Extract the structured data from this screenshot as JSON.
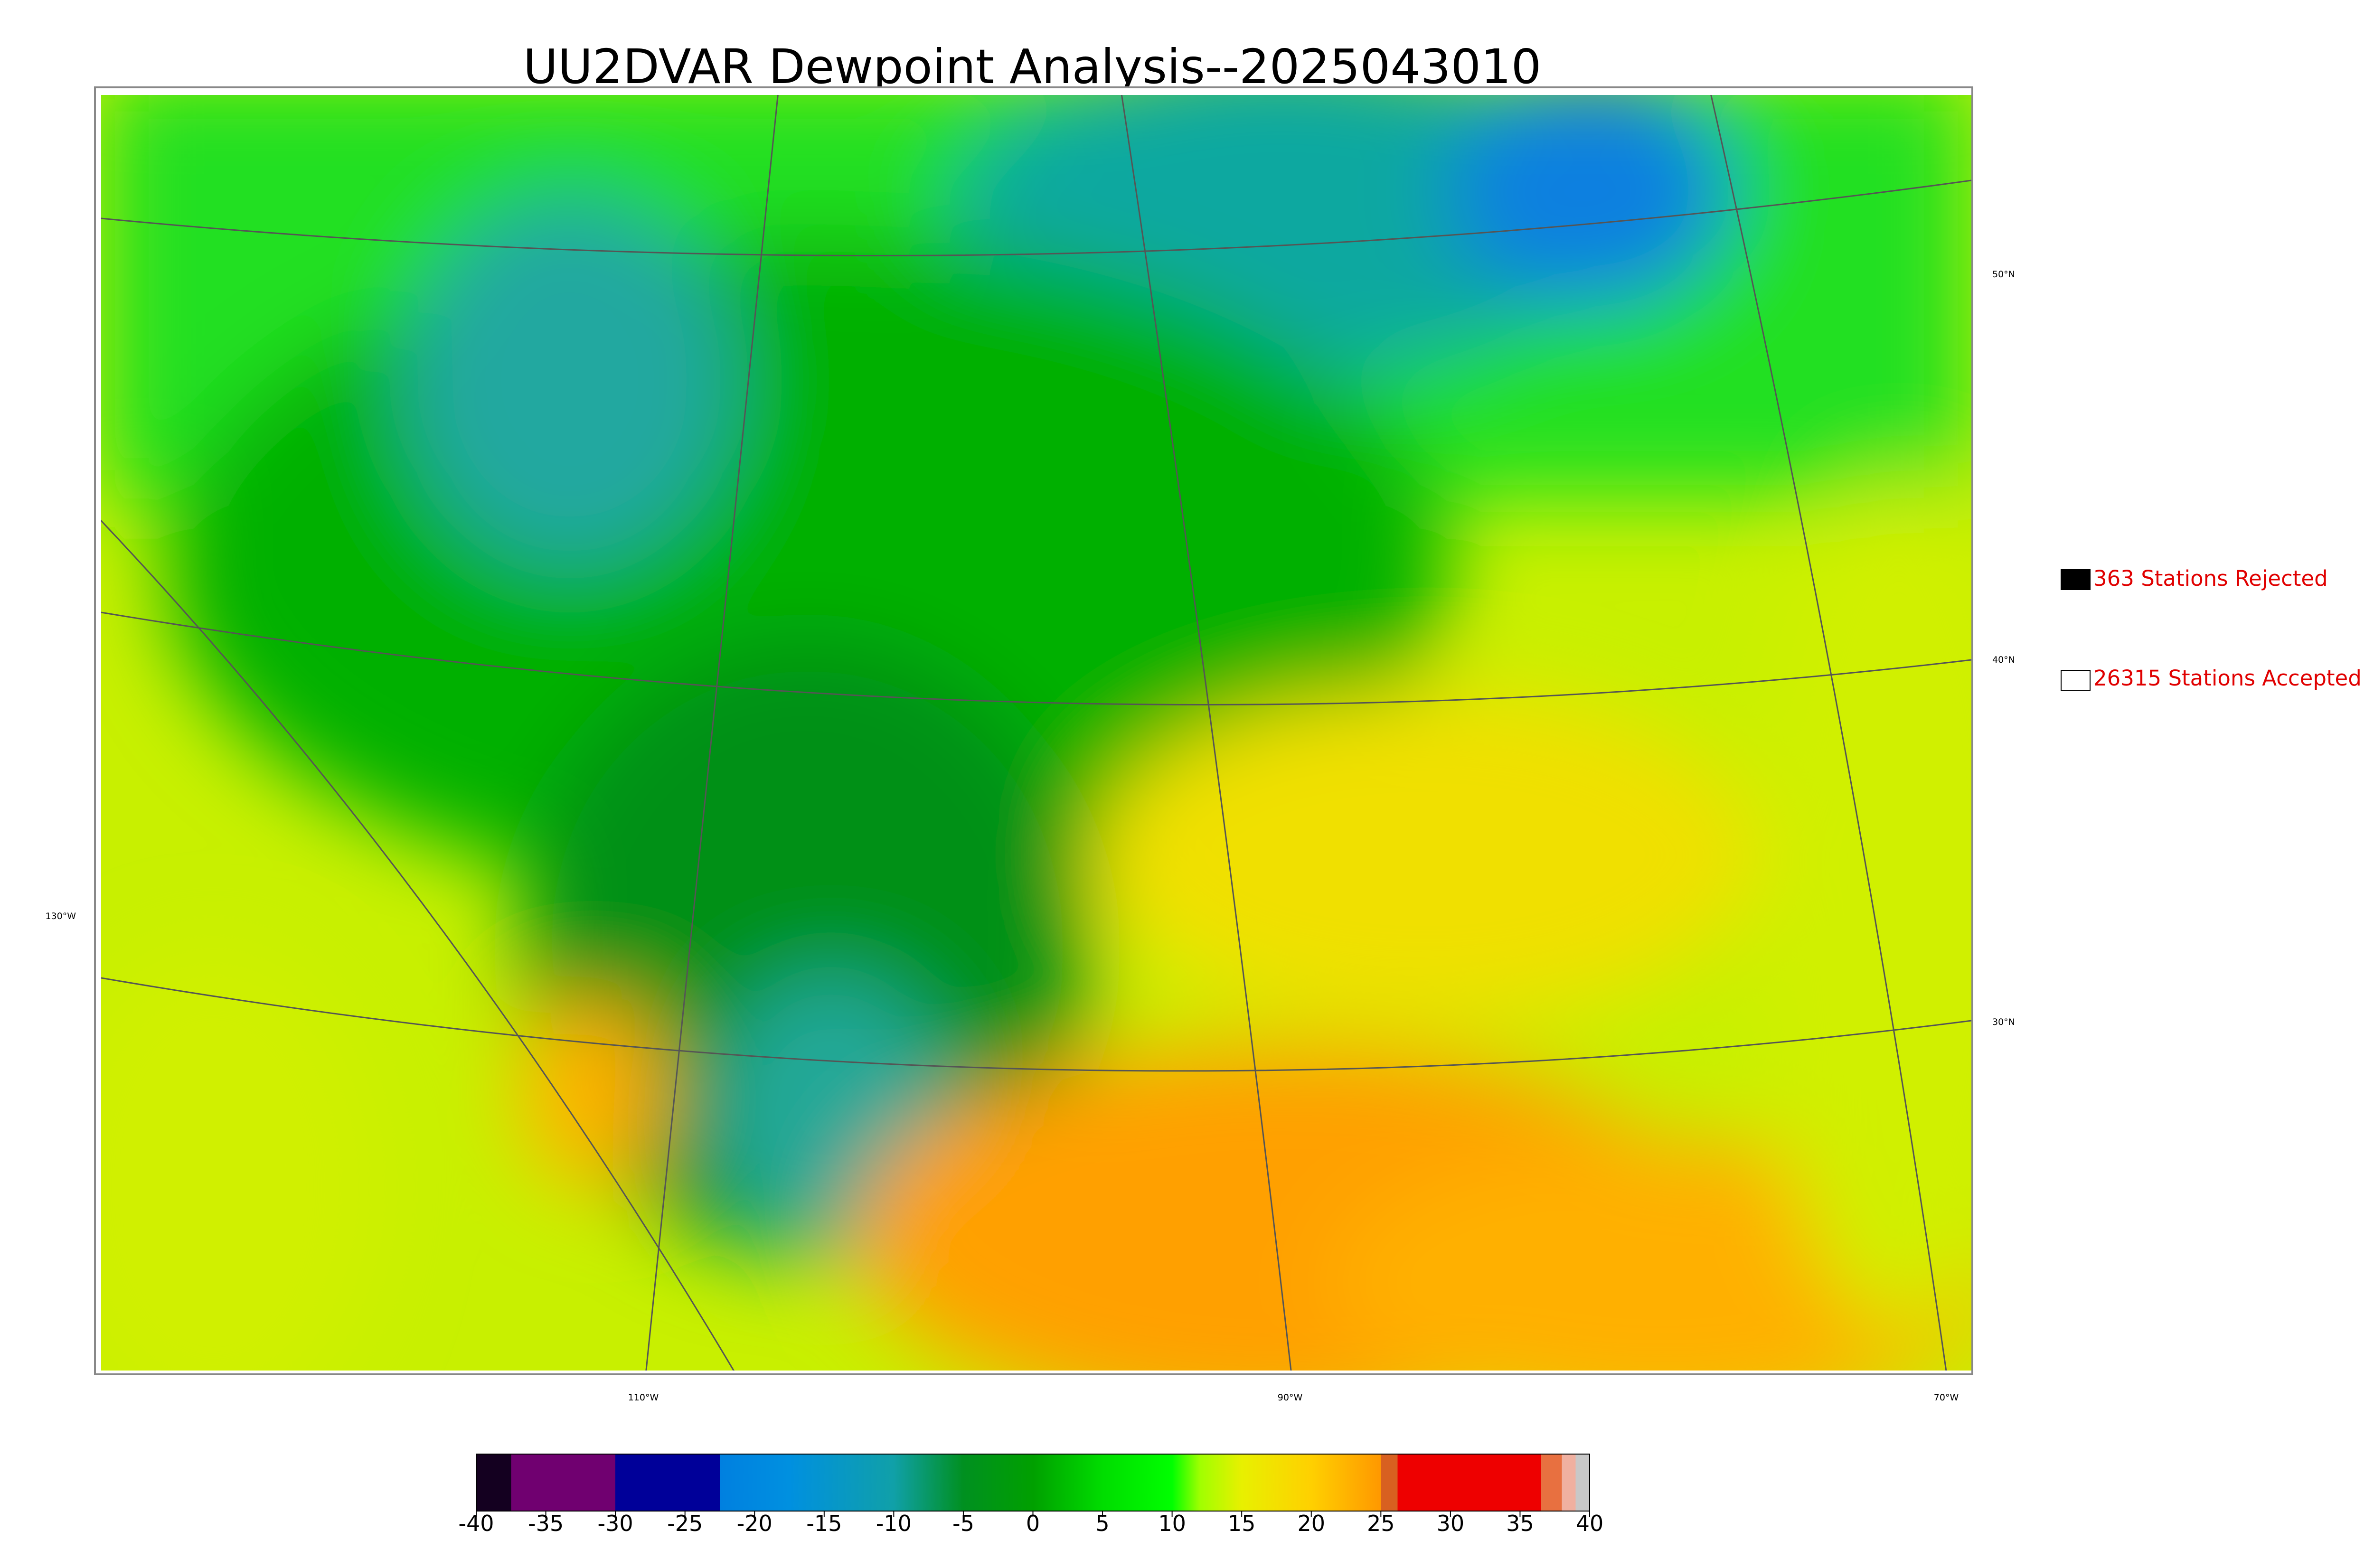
{
  "title": "UU2DVAR Dewpoint Analysis--2025043010",
  "legend": [
    {
      "label": "363 Stations Rejected",
      "color": "#000000"
    },
    {
      "label": "26315 Stations Accepted",
      "color": "#ffffff"
    }
  ],
  "graticule": {
    "latitudes": [
      "50°N",
      "40°N",
      "30°N"
    ],
    "longitudes": [
      "130°W",
      "110°W",
      "90°W",
      "70°W"
    ]
  },
  "colorbar": {
    "lim": [
      -40,
      40
    ],
    "ticks": [
      -40,
      -35,
      -30,
      -25,
      -20,
      -15,
      -10,
      -5,
      0,
      5,
      10,
      15,
      20,
      25,
      30,
      35,
      40
    ],
    "stops": [
      {
        "value": -40,
        "color": "#140020"
      },
      {
        "value": -37.5,
        "color": "#140020"
      },
      {
        "value": -37.5,
        "color": "#700070"
      },
      {
        "value": -30,
        "color": "#700070"
      },
      {
        "value": -30,
        "color": "#000099"
      },
      {
        "value": -22.5,
        "color": "#000099"
      },
      {
        "value": -22.5,
        "color": "#0080e0"
      },
      {
        "value": -17.5,
        "color": "#0090e0"
      },
      {
        "value": -10,
        "color": "#10a0a8"
      },
      {
        "value": -5,
        "color": "#009020"
      },
      {
        "value": 0,
        "color": "#00a000"
      },
      {
        "value": 5,
        "color": "#00dd00"
      },
      {
        "value": 10,
        "color": "#00ff00"
      },
      {
        "value": 12,
        "color": "#a0ff00"
      },
      {
        "value": 15,
        "color": "#e8f000"
      },
      {
        "value": 20,
        "color": "#ffd000"
      },
      {
        "value": 25,
        "color": "#ff9800"
      },
      {
        "value": 25,
        "color": "#d86020"
      },
      {
        "value": 26.2,
        "color": "#d86020"
      },
      {
        "value": 26.2,
        "color": "#ee0000"
      },
      {
        "value": 36.5,
        "color": "#ee0000"
      },
      {
        "value": 36.5,
        "color": "#e87040"
      },
      {
        "value": 38,
        "color": "#e87040"
      },
      {
        "value": 38,
        "color": "#f0b0a0"
      },
      {
        "value": 39,
        "color": "#f0b0a0"
      },
      {
        "value": 39,
        "color": "#c8c8c8"
      },
      {
        "value": 40,
        "color": "#c8c8c8"
      }
    ]
  }
}
